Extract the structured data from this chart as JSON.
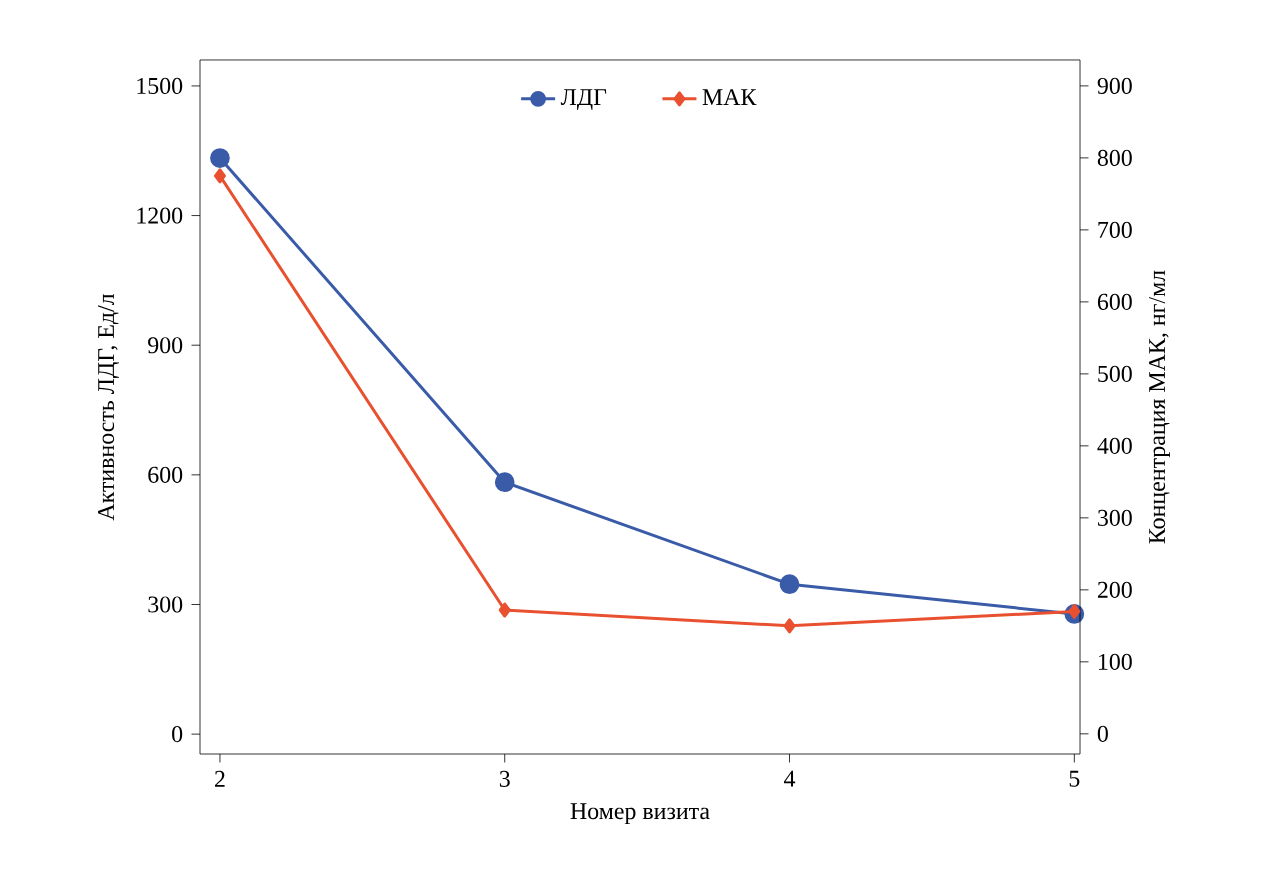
{
  "chart_data": {
    "type": "line",
    "xlabel": "Номер визита",
    "ylabel": "Активность ЛДГ, Ед/л",
    "y2label": "Концентрация МАК, нг/мл",
    "x": [
      2,
      3,
      4,
      5
    ],
    "xlim": [
      1.93,
      5.02
    ],
    "xticks": [
      2,
      3,
      4,
      5
    ],
    "ylim": [
      -46,
      1560
    ],
    "yticks": [
      0,
      300,
      600,
      900,
      1200,
      1500
    ],
    "y2lim": [
      -28,
      936
    ],
    "y2ticks": [
      0,
      100,
      200,
      300,
      400,
      500,
      600,
      700,
      800,
      900
    ],
    "legend": "top",
    "line_style": "solid",
    "series": [
      {
        "name": "ЛДГ",
        "color": "#3a5ba8",
        "marker": "circle",
        "values": [
          1333,
          583,
          347,
          278
        ]
      },
      {
        "name": "МАК",
        "color": "#e8502f",
        "marker": "diamond",
        "axis": "y2",
        "values": [
          775,
          172,
          150,
          170
        ]
      }
    ]
  }
}
